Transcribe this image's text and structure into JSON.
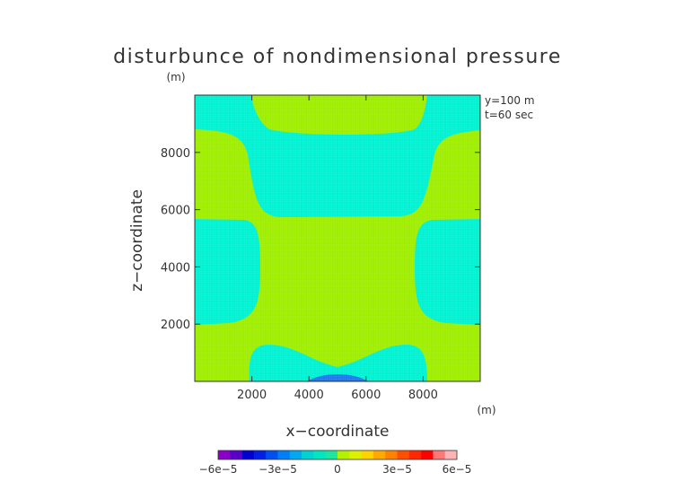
{
  "chart_data": {
    "type": "heatmap",
    "title": "disturbunce of nondimensional pressure",
    "unit_label": "(m)",
    "xlabel": "x−coordinate",
    "ylabel": "z−coordinate",
    "x_unit_label": "(m)",
    "annotations": [
      "y=100 m",
      "t=60 sec"
    ],
    "xlim": [
      0,
      10000
    ],
    "ylim": [
      0,
      10000
    ],
    "xticks": [
      2000,
      4000,
      6000,
      8000
    ],
    "yticks": [
      2000,
      4000,
      6000,
      8000
    ],
    "xtick_labels": [
      "2000",
      "4000",
      "6000",
      "8000"
    ],
    "ytick_labels": [
      "2000",
      "4000",
      "6000",
      "8000"
    ],
    "grid": false,
    "colorbar": {
      "orientation": "horizontal",
      "placement": "bottom",
      "range": [
        -6e-05,
        6e-05
      ],
      "tick_labels": [
        "−6e−5",
        "−3e−5",
        "0",
        "3e−5",
        "6e−5"
      ],
      "colors": [
        "#8a00c8",
        "#5a00c8",
        "#0000d2",
        "#0020e6",
        "#0050f0",
        "#0080f6",
        "#00aaf0",
        "#00d2d2",
        "#00e6be",
        "#1ee6a0",
        "#b4f000",
        "#dcf000",
        "#ffd200",
        "#ffaa00",
        "#ff8200",
        "#ff5000",
        "#ff2800",
        "#ff0000",
        "#ff7878",
        "#ffb4b4"
      ]
    },
    "region_values": {
      "background": 0,
      "cyan_regions": -1.5e-05,
      "blue_core": -4.2e-05
    },
    "region_colors": {
      "background": "#9fee00",
      "cyan_regions": "#00f2d2",
      "blue_core": "#1e78f0"
    }
  }
}
